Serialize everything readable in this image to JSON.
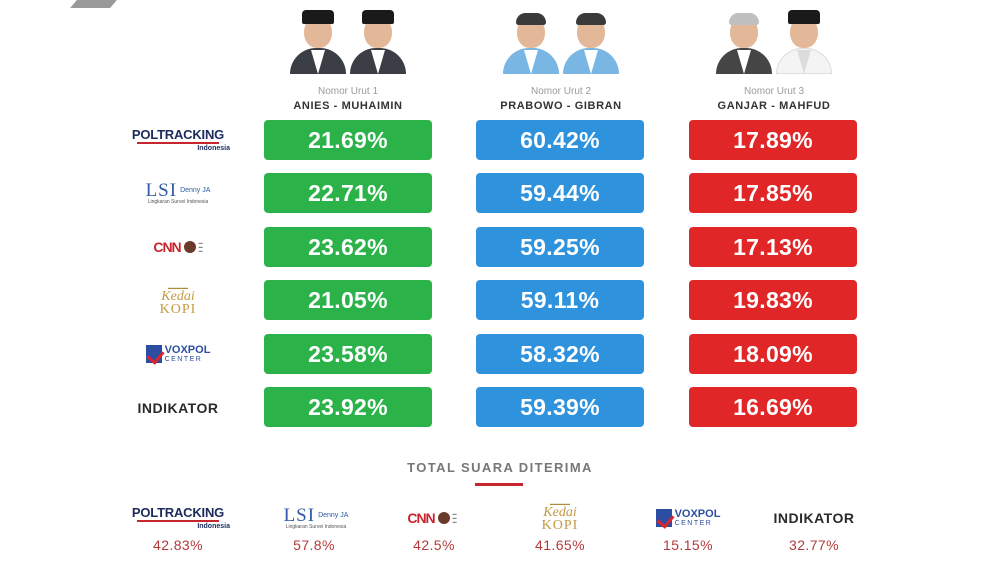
{
  "candidates": [
    {
      "nomor": "Nomor Urut 1",
      "names": "ANIES - MUHAIMIN",
      "color": "#2bb34a"
    },
    {
      "nomor": "Nomor Urut 2",
      "names": "PRABOWO - GIBRAN",
      "color": "#2f92dc"
    },
    {
      "nomor": "Nomor Urut 3",
      "names": "GANJAR - MAHFUD",
      "color": "#e02627"
    }
  ],
  "pollsters": [
    {
      "id": "poltracking",
      "logo_t1": "POLTRACKING",
      "logo_t2": "Indonesia"
    },
    {
      "id": "lsi",
      "logo_t1": "LSI",
      "logo_t1b": "Denny JA",
      "logo_t2": "Lingkaran Survei Indonesia"
    },
    {
      "id": "cnn",
      "logo_t1": "CNN"
    },
    {
      "id": "kedaikopi",
      "logo_t1": "Kedai",
      "logo_t2": "KOPI"
    },
    {
      "id": "voxpol",
      "logo_t1": "VOXPOL",
      "logo_t2": "CENTER"
    },
    {
      "id": "indikator",
      "logo_t1": "INDIKATOR"
    }
  ],
  "total_section": {
    "title": "TOTAL SUARA DITERIMA",
    "values": [
      "42.83%",
      "57.8%",
      "42.5%",
      "41.65%",
      "15.15%",
      "32.77%"
    ]
  },
  "chart_data": {
    "type": "table",
    "columns": [
      "ANIES - MUHAIMIN",
      "PRABOWO - GIBRAN",
      "GANJAR - MAHFUD"
    ],
    "rows": [
      "POLTRACKING",
      "LSI",
      "CNN",
      "Kedai KOPI",
      "VOXPOL CENTER",
      "INDIKATOR"
    ],
    "values": [
      [
        "21.69%",
        "60.42%",
        "17.89%"
      ],
      [
        "22.71%",
        "59.44%",
        "17.85%"
      ],
      [
        "23.62%",
        "59.25%",
        "17.13%"
      ],
      [
        "21.05%",
        "59.11%",
        "19.83%"
      ],
      [
        "23.58%",
        "58.32%",
        "18.09%"
      ],
      [
        "23.92%",
        "59.39%",
        "16.69%"
      ]
    ]
  }
}
